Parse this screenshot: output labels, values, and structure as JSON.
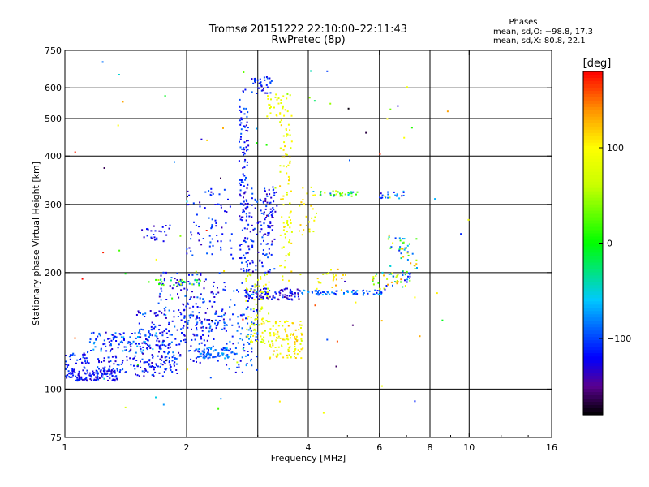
{
  "header": {
    "title_line1": "Tromsø 20151222 22:10:00–22:11:43",
    "title_line2": "RwPretec (8p)"
  },
  "phase_info": {
    "heading": "Phases",
    "line_o": "mean, sd,O: −98.8, 17.3",
    "line_x": "mean, sd,X:  80.8, 22.1"
  },
  "colorbar": {
    "title": "[deg]",
    "range": [
      -180,
      180
    ],
    "ticks": [
      {
        "value": 100,
        "label": "100"
      },
      {
        "value": 0,
        "label": "0"
      },
      {
        "value": -100,
        "label": "−100"
      }
    ],
    "stops": [
      {
        "v": -180,
        "c": "#000000"
      },
      {
        "v": -150,
        "c": "#5a0090"
      },
      {
        "v": -120,
        "c": "#0000ff"
      },
      {
        "v": -60,
        "c": "#00c8ff"
      },
      {
        "v": 0,
        "c": "#00ff00"
      },
      {
        "v": 60,
        "c": "#c8ff00"
      },
      {
        "v": 100,
        "c": "#ffff00"
      },
      {
        "v": 140,
        "c": "#ff9000"
      },
      {
        "v": 180,
        "c": "#ff0000"
      }
    ]
  },
  "chart_data": {
    "type": "scatter",
    "title": "Tromsø 20151222 22:10:00–22:11:43",
    "subtitle": "RwPretec (8p)",
    "xlabel": "Frequency [MHz]",
    "ylabel": "Stationary phase Virtual Height [km]",
    "x_scale": "log",
    "y_scale": "log",
    "xlim": [
      1,
      16
    ],
    "ylim": [
      75,
      750
    ],
    "x_ticks": [
      {
        "value": 1,
        "label": "1"
      },
      {
        "value": 2,
        "label": "2"
      },
      {
        "value": 4,
        "label": "4"
      },
      {
        "value": 6,
        "label": "6"
      },
      {
        "value": 8,
        "label": "8"
      },
      {
        "value": 10,
        "label": "10"
      },
      {
        "value": 16,
        "label": "16"
      }
    ],
    "x_gridlines": [
      2,
      3,
      4,
      6,
      8,
      10
    ],
    "y_ticks": [
      {
        "value": 75,
        "label": "75"
      },
      {
        "value": 100,
        "label": "100"
      },
      {
        "value": 200,
        "label": "200"
      },
      {
        "value": 300,
        "label": "300"
      },
      {
        "value": 400,
        "label": "400"
      },
      {
        "value": 500,
        "label": "500"
      },
      {
        "value": 600,
        "label": "600"
      },
      {
        "value": 750,
        "label": "750"
      }
    ],
    "y_gridlines": [
      100,
      200,
      300,
      400,
      500,
      600
    ],
    "grid": true,
    "color_variable": "phase [deg]",
    "clusters": [
      {
        "x": [
          1.0,
          1.35
        ],
        "y": [
          105,
          112
        ],
        "phase": [
          -140,
          -100
        ],
        "n": 110
      },
      {
        "x": [
          1.2,
          1.9
        ],
        "y": [
          108,
          122
        ],
        "phase": [
          -140,
          -90
        ],
        "n": 130
      },
      {
        "x": [
          1.0,
          1.15
        ],
        "y": [
          112,
          125
        ],
        "phase": [
          -130,
          -90
        ],
        "n": 40
      },
      {
        "x": [
          1.15,
          1.8
        ],
        "y": [
          125,
          140
        ],
        "phase": [
          -140,
          -60
        ],
        "n": 120
      },
      {
        "x": [
          1.5,
          2.4
        ],
        "y": [
          115,
          160
        ],
        "phase": [
          -140,
          -80
        ],
        "n": 170
      },
      {
        "x": [
          1.7,
          2.5
        ],
        "y": [
          140,
          200
        ],
        "phase": [
          -140,
          -80
        ],
        "n": 150
      },
      {
        "x": [
          1.6,
          2.2
        ],
        "y": [
          185,
          192
        ],
        "phase": [
          -40,
          60
        ],
        "n": 25
      },
      {
        "x": [
          1.55,
          1.85
        ],
        "y": [
          240,
          265
        ],
        "phase": [
          -140,
          -100
        ],
        "n": 25
      },
      {
        "x": [
          2.0,
          2.6
        ],
        "y": [
          220,
          330
        ],
        "phase": [
          -140,
          -90
        ],
        "n": 70
      },
      {
        "x": [
          2.1,
          2.6
        ],
        "y": [
          120,
          128
        ],
        "phase": [
          -120,
          -60
        ],
        "n": 80
      },
      {
        "x": [
          2.5,
          3.0
        ],
        "y": [
          110,
          190
        ],
        "phase": [
          -130,
          -70
        ],
        "n": 100
      },
      {
        "x": [
          2.7,
          2.85
        ],
        "y": [
          200,
          600
        ],
        "phase": [
          -140,
          -90
        ],
        "n": 130
      },
      {
        "x": [
          2.85,
          3.3
        ],
        "y": [
          200,
          330
        ],
        "phase": [
          -140,
          -90
        ],
        "n": 90
      },
      {
        "x": [
          2.9,
          3.25
        ],
        "y": [
          580,
          640
        ],
        "phase": [
          -140,
          -90
        ],
        "n": 35
      },
      {
        "x": [
          3.1,
          3.35
        ],
        "y": [
          240,
          345
        ],
        "phase": [
          -150,
          -100
        ],
        "n": 40
      },
      {
        "x": [
          2.8,
          3.8
        ],
        "y": [
          170,
          182
        ],
        "phase": [
          -150,
          -100
        ],
        "n": 90
      },
      {
        "x": [
          3.7,
          6.1
        ],
        "y": [
          175,
          180
        ],
        "phase": [
          -120,
          -60
        ],
        "n": 70
      },
      {
        "x": [
          2.8,
          3.2
        ],
        "y": [
          130,
          200
        ],
        "phase": [
          50,
          110
        ],
        "n": 80
      },
      {
        "x": [
          3.2,
          3.9
        ],
        "y": [
          120,
          150
        ],
        "phase": [
          70,
          130
        ],
        "n": 110
      },
      {
        "x": [
          3.4,
          3.65
        ],
        "y": [
          190,
          580
        ],
        "phase": [
          70,
          120
        ],
        "n": 90
      },
      {
        "x": [
          3.15,
          3.5
        ],
        "y": [
          500,
          580
        ],
        "phase": [
          70,
          110
        ],
        "n": 25
      },
      {
        "x": [
          4.1,
          5.3
        ],
        "y": [
          315,
          325
        ],
        "phase": [
          -120,
          100
        ],
        "n": 35
      },
      {
        "x": [
          5.7,
          7.3
        ],
        "y": [
          180,
          200
        ],
        "phase": [
          -140,
          150
        ],
        "n": 50
      },
      {
        "x": [
          6.3,
          7.5
        ],
        "y": [
          200,
          250
        ],
        "phase": [
          -120,
          140
        ],
        "n": 45
      },
      {
        "x": [
          5.9,
          6.9
        ],
        "y": [
          310,
          325
        ],
        "phase": [
          -140,
          -60
        ],
        "n": 18
      },
      {
        "x": [
          4.2,
          5.0
        ],
        "y": [
          180,
          205
        ],
        "phase": [
          60,
          140
        ],
        "n": 25
      },
      {
        "x": [
          3.8,
          4.2
        ],
        "y": [
          250,
          340
        ],
        "phase": [
          60,
          120
        ],
        "n": 25
      },
      {
        "x": [
          1.0,
          10.0
        ],
        "y": [
          80,
          700
        ],
        "phase": [
          -180,
          180
        ],
        "n": 90
      }
    ]
  }
}
